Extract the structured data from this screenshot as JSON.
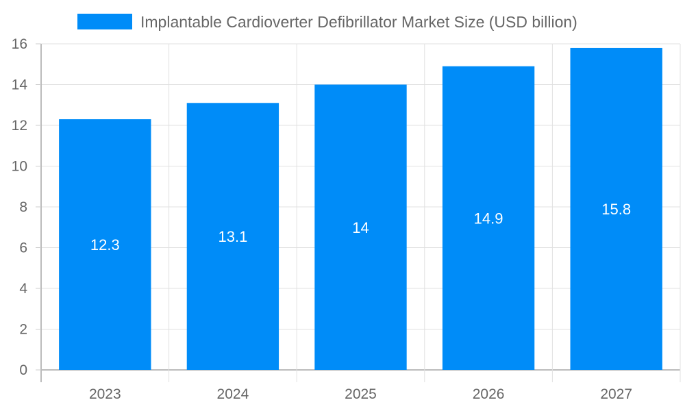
{
  "chart_data": {
    "type": "bar",
    "title": "",
    "legend": [
      "Implantable Cardioverter Defibrillator Market Size (USD billion)"
    ],
    "legend_placement": "top",
    "categories": [
      "2023",
      "2024",
      "2025",
      "2026",
      "2027"
    ],
    "values": [
      12.3,
      13.1,
      14,
      14.9,
      15.8
    ],
    "data_labels": [
      "12.3",
      "13.1",
      "14",
      "14.9",
      "15.8"
    ],
    "xlabel": "",
    "ylabel": "",
    "ylim": [
      0,
      16
    ],
    "yticks": [
      "0",
      "2",
      "4",
      "6",
      "8",
      "10",
      "12",
      "14",
      "16"
    ],
    "grid": true,
    "bar_color": "#008cf8"
  }
}
